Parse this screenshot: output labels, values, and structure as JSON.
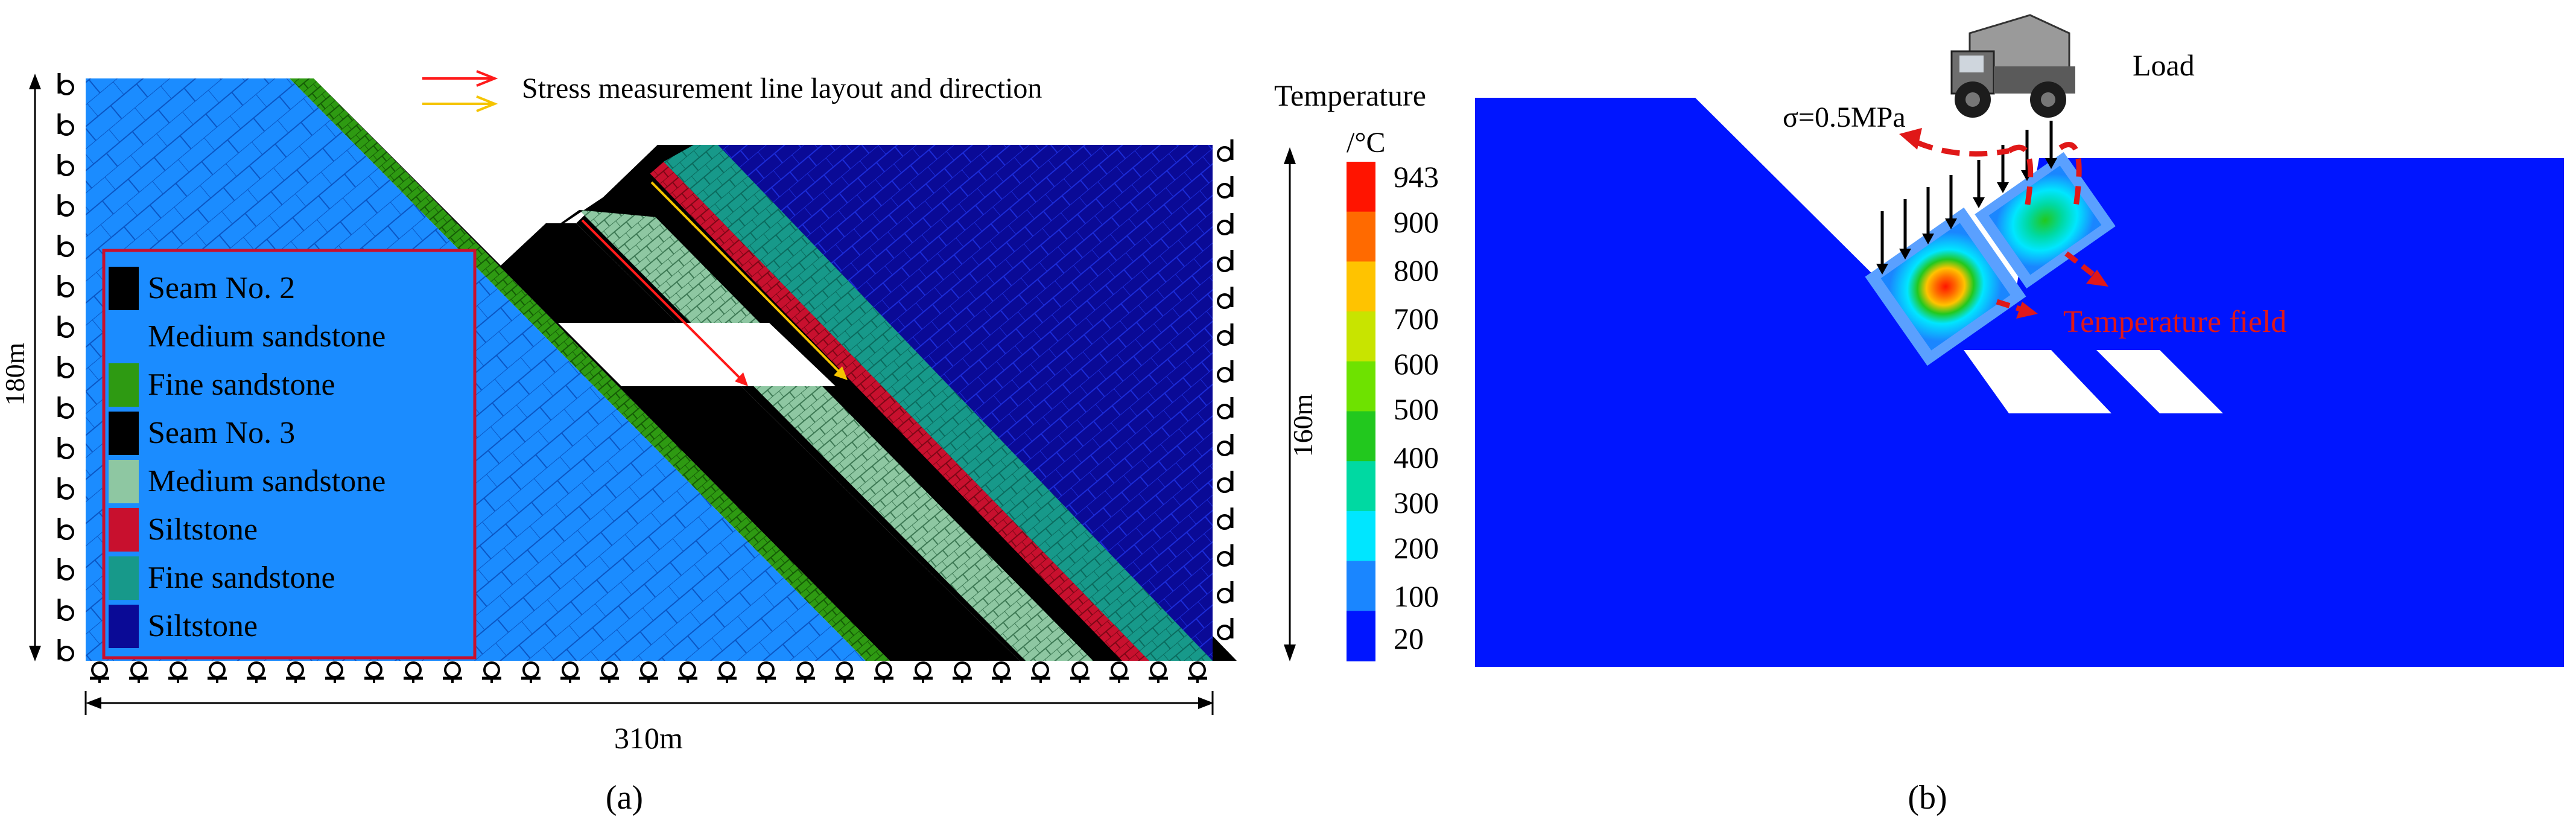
{
  "panel_a": {
    "label": "(a)",
    "arrow_legend": {
      "text": "Stress measurement line layout and direction",
      "colors": [
        "#ff1a1a",
        "#f5c400"
      ]
    },
    "height_dim": "180m",
    "width_dim": "310m",
    "legend": [
      {
        "label": "Seam No. 2",
        "color": "#000000"
      },
      {
        "label": "Medium sandstone",
        "color": "#1b8cff"
      },
      {
        "label": "Fine sandstone",
        "color": "#2e9a12"
      },
      {
        "label": "Seam No. 3",
        "color": "#000000"
      },
      {
        "label": "Medium sandstone",
        "color": "#8ec7a2"
      },
      {
        "label": "Siltstone",
        "color": "#c8102e"
      },
      {
        "label": "Fine sandstone",
        "color": "#17998a"
      },
      {
        "label": "Siltstone",
        "color": "#0a0a96"
      }
    ]
  },
  "panel_b": {
    "label": "(b)",
    "height_dim": "160m",
    "colorbar": {
      "title": "Temperature",
      "unit": "/°C",
      "ticks": [
        "943",
        "900",
        "800",
        "700",
        "600",
        "500",
        "400",
        "300",
        "200",
        "100",
        "20"
      ],
      "colors": [
        "#ff1400",
        "#ff6a00",
        "#ffc300",
        "#c8e400",
        "#6ee200",
        "#22c81e",
        "#00d9a2",
        "#00e6ff",
        "#1a86ff",
        "#0015ff"
      ]
    },
    "load_label": "Load",
    "stress_label": "σ=0.5MPa",
    "temperature_field_label": "Temperature field"
  },
  "colors": {
    "medium_sandstone": "#1b8cff",
    "domain_blue": "#0015ff",
    "annotation_red": "#e01818"
  }
}
